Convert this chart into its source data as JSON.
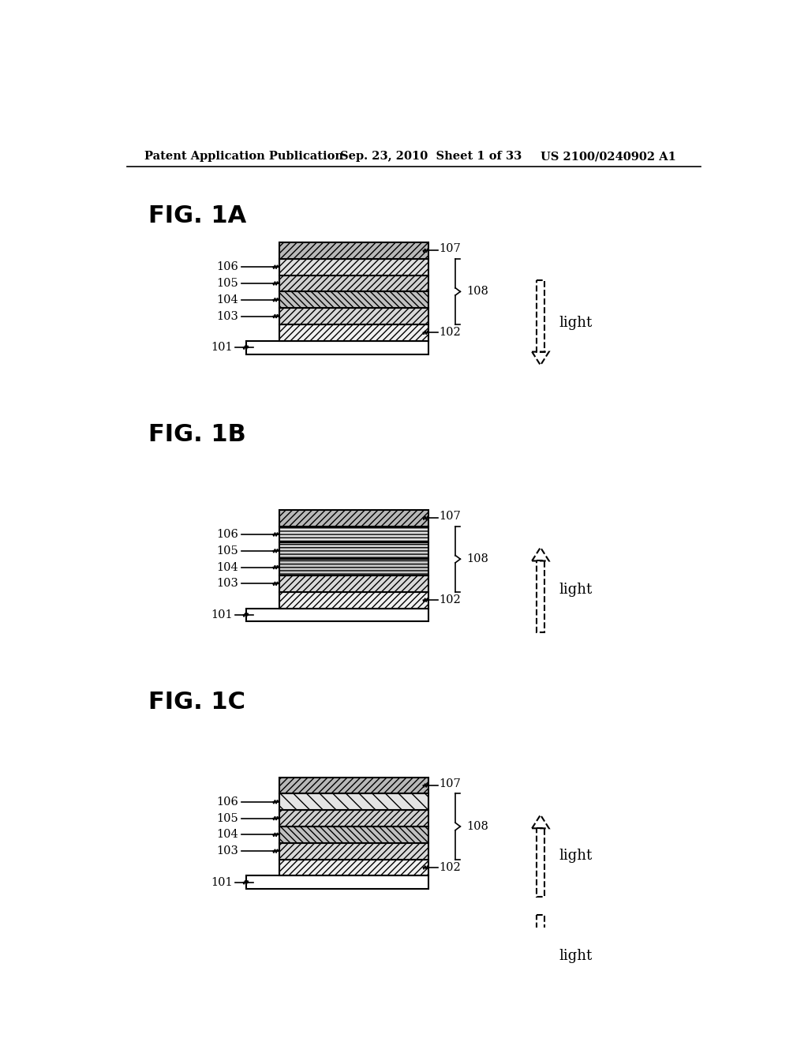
{
  "header_left": "Patent Application Publication",
  "header_center": "Sep. 23, 2010  Sheet 1 of 33",
  "header_right": "US 2100/0240902 A1",
  "background_color": "#ffffff",
  "line_color": "#000000"
}
